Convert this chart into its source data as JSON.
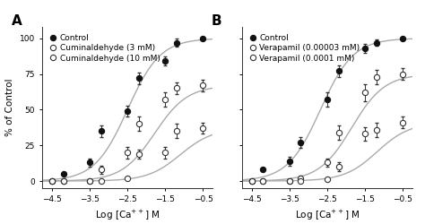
{
  "panel_A": {
    "label": "A",
    "xlabel": "Log [Ca++] M",
    "ylabel": "% of Control",
    "xlim": [
      -4.75,
      -0.25
    ],
    "ylim": [
      -5,
      108
    ],
    "xticks": [
      -4.5,
      -3.5,
      -2.5,
      -1.5,
      -0.5
    ],
    "yticks": [
      0,
      25,
      50,
      75,
      100
    ],
    "series": [
      {
        "label": "Control",
        "marker": "o",
        "filled": true,
        "x": [
          -4.5,
          -4.2,
          -3.5,
          -3.2,
          -2.5,
          -2.2,
          -1.5,
          -1.2,
          -0.5
        ],
        "y": [
          0,
          5,
          13,
          35,
          49,
          72,
          84,
          97,
          100
        ],
        "yerr": [
          0,
          1,
          3,
          4,
          4,
          4,
          3,
          3,
          0
        ],
        "ec50_log": -2.5,
        "top": 100
      },
      {
        "label": "Cuminaldehyde (3 mM)",
        "marker": "o",
        "filled": false,
        "x": [
          -4.5,
          -4.2,
          -3.5,
          -3.2,
          -2.5,
          -2.2,
          -1.5,
          -1.2,
          -0.5
        ],
        "y": [
          0,
          0,
          0,
          8,
          20,
          40,
          57,
          65,
          67
        ],
        "yerr": [
          0,
          0,
          0,
          3,
          4,
          5,
          5,
          4,
          4
        ],
        "ec50_log": -1.78,
        "top": 67
      },
      {
        "label": "Cuminaldehyde (10 mM)",
        "marker": "o",
        "filled": false,
        "x": [
          -4.5,
          -4.2,
          -3.5,
          -3.2,
          -2.5,
          -2.2,
          -1.5,
          -1.2,
          -0.5
        ],
        "y": [
          0,
          0,
          0,
          0,
          2,
          19,
          20,
          35,
          37
        ],
        "yerr": [
          0,
          0,
          0,
          0,
          1,
          3,
          4,
          5,
          4
        ],
        "ec50_log": -1.1,
        "top": 37
      }
    ]
  },
  "panel_B": {
    "label": "B",
    "xlabel": "Log [Ca++] M",
    "ylabel": "% of Control",
    "xlim": [
      -4.75,
      -0.25
    ],
    "ylim": [
      -5,
      108
    ],
    "xticks": [
      -4.5,
      -3.5,
      -2.5,
      -1.5,
      -0.5
    ],
    "yticks": [
      0,
      25,
      50,
      75,
      100
    ],
    "series": [
      {
        "label": "Control",
        "marker": "o",
        "filled": true,
        "x": [
          -4.5,
          -4.2,
          -3.5,
          -3.2,
          -2.5,
          -2.2,
          -1.5,
          -1.2,
          -0.5
        ],
        "y": [
          0,
          8,
          14,
          27,
          57,
          77,
          93,
          97,
          100
        ],
        "yerr": [
          0,
          1,
          3,
          4,
          5,
          4,
          3,
          2,
          0
        ],
        "ec50_log": -2.68,
        "top": 100
      },
      {
        "label": "Verapamil (0.00003 mM)",
        "marker": "o",
        "filled": false,
        "x": [
          -4.5,
          -4.2,
          -3.5,
          -3.2,
          -2.5,
          -2.2,
          -1.5,
          -1.2,
          -0.5
        ],
        "y": [
          0,
          0,
          0,
          2,
          13,
          34,
          62,
          73,
          75
        ],
        "yerr": [
          0,
          0,
          0,
          2,
          3,
          5,
          6,
          5,
          4
        ],
        "ec50_log": -1.85,
        "top": 75
      },
      {
        "label": "Verapamil (0.0001 mM)",
        "marker": "o",
        "filled": false,
        "x": [
          -4.5,
          -4.2,
          -3.5,
          -3.2,
          -2.5,
          -2.2,
          -1.5,
          -1.2,
          -0.5
        ],
        "y": [
          0,
          0,
          0,
          0,
          1,
          10,
          33,
          36,
          41
        ],
        "yerr": [
          0,
          0,
          0,
          0,
          1,
          3,
          5,
          5,
          4
        ],
        "ec50_log": -1.18,
        "top": 41
      }
    ]
  },
  "line_color": "#aaaaaa",
  "fill_color": "#111111",
  "open_edge_color": "#333333",
  "marker_size": 4.5,
  "linewidth": 1.0,
  "capsize": 1.5,
  "elinewidth": 0.7,
  "font_size": 6.5,
  "label_fontsize": 7.5,
  "panel_label_fontsize": 11
}
